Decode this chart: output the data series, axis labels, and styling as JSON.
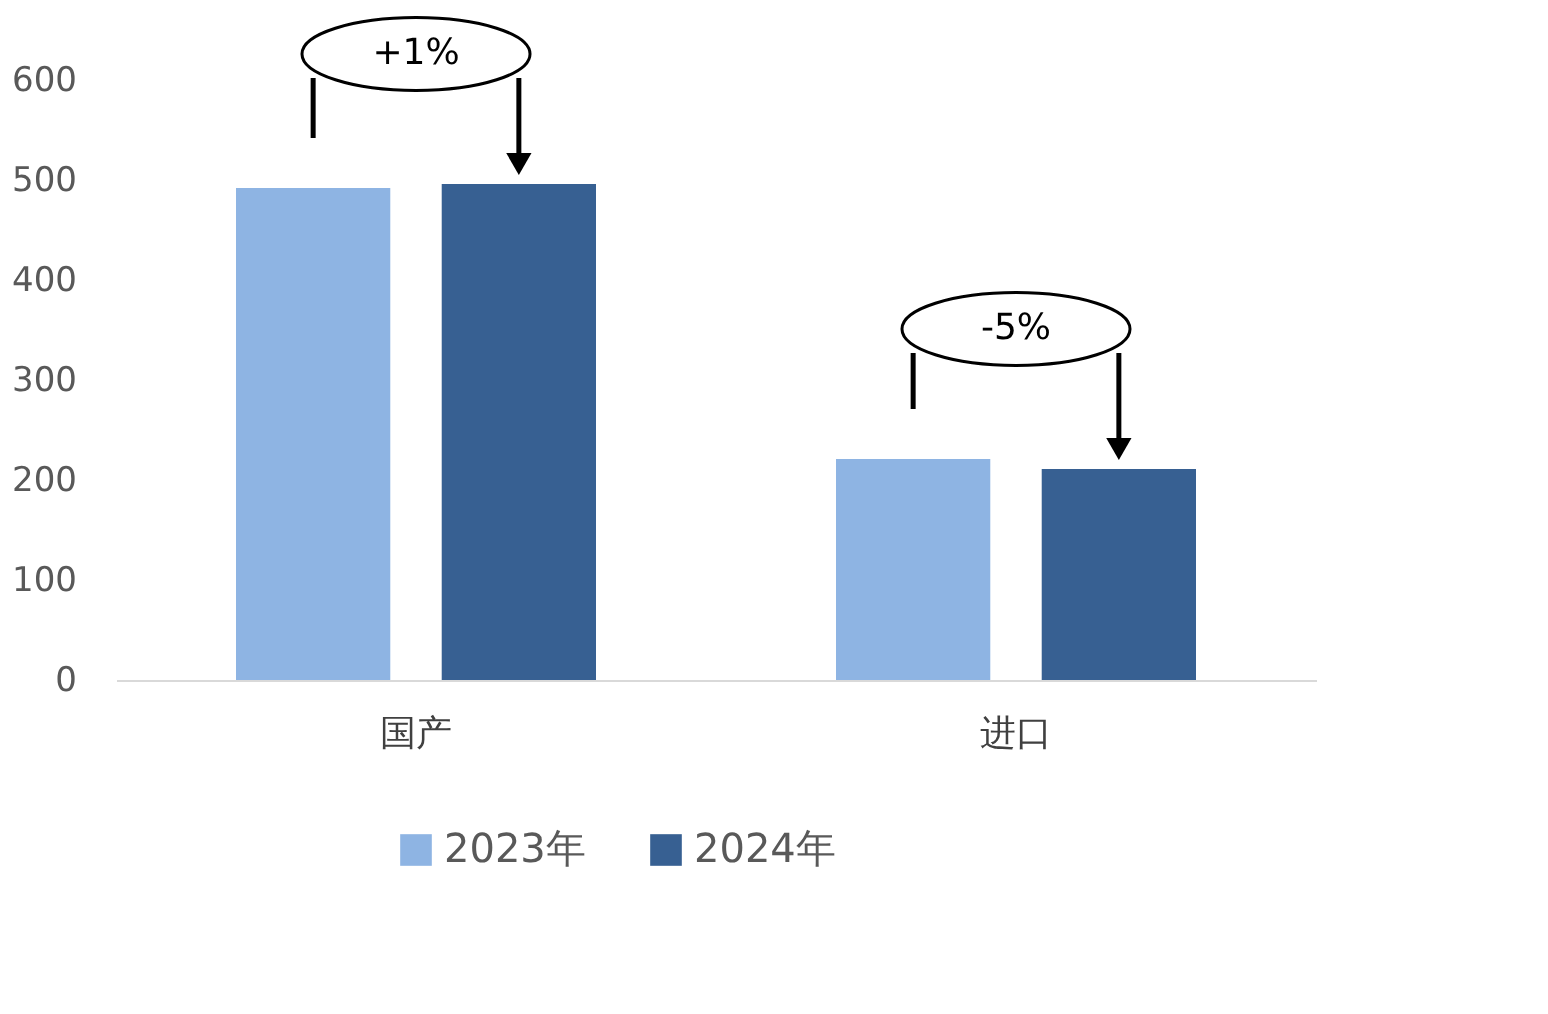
{
  "chart_data": {
    "type": "bar",
    "categories": [
      "国产",
      "进口"
    ],
    "series": [
      {
        "name": "2023年",
        "color": "#8eb4e3",
        "values": [
          492,
          221
        ]
      },
      {
        "name": "2024年",
        "color": "#376092",
        "values": [
          496,
          211
        ]
      }
    ],
    "ylim": [
      0,
      600
    ],
    "yticks": [
      0,
      100,
      200,
      300,
      400,
      500,
      600
    ],
    "grid": false,
    "legend": "bottom",
    "annotations": [
      "+1%",
      "-5%"
    ]
  }
}
